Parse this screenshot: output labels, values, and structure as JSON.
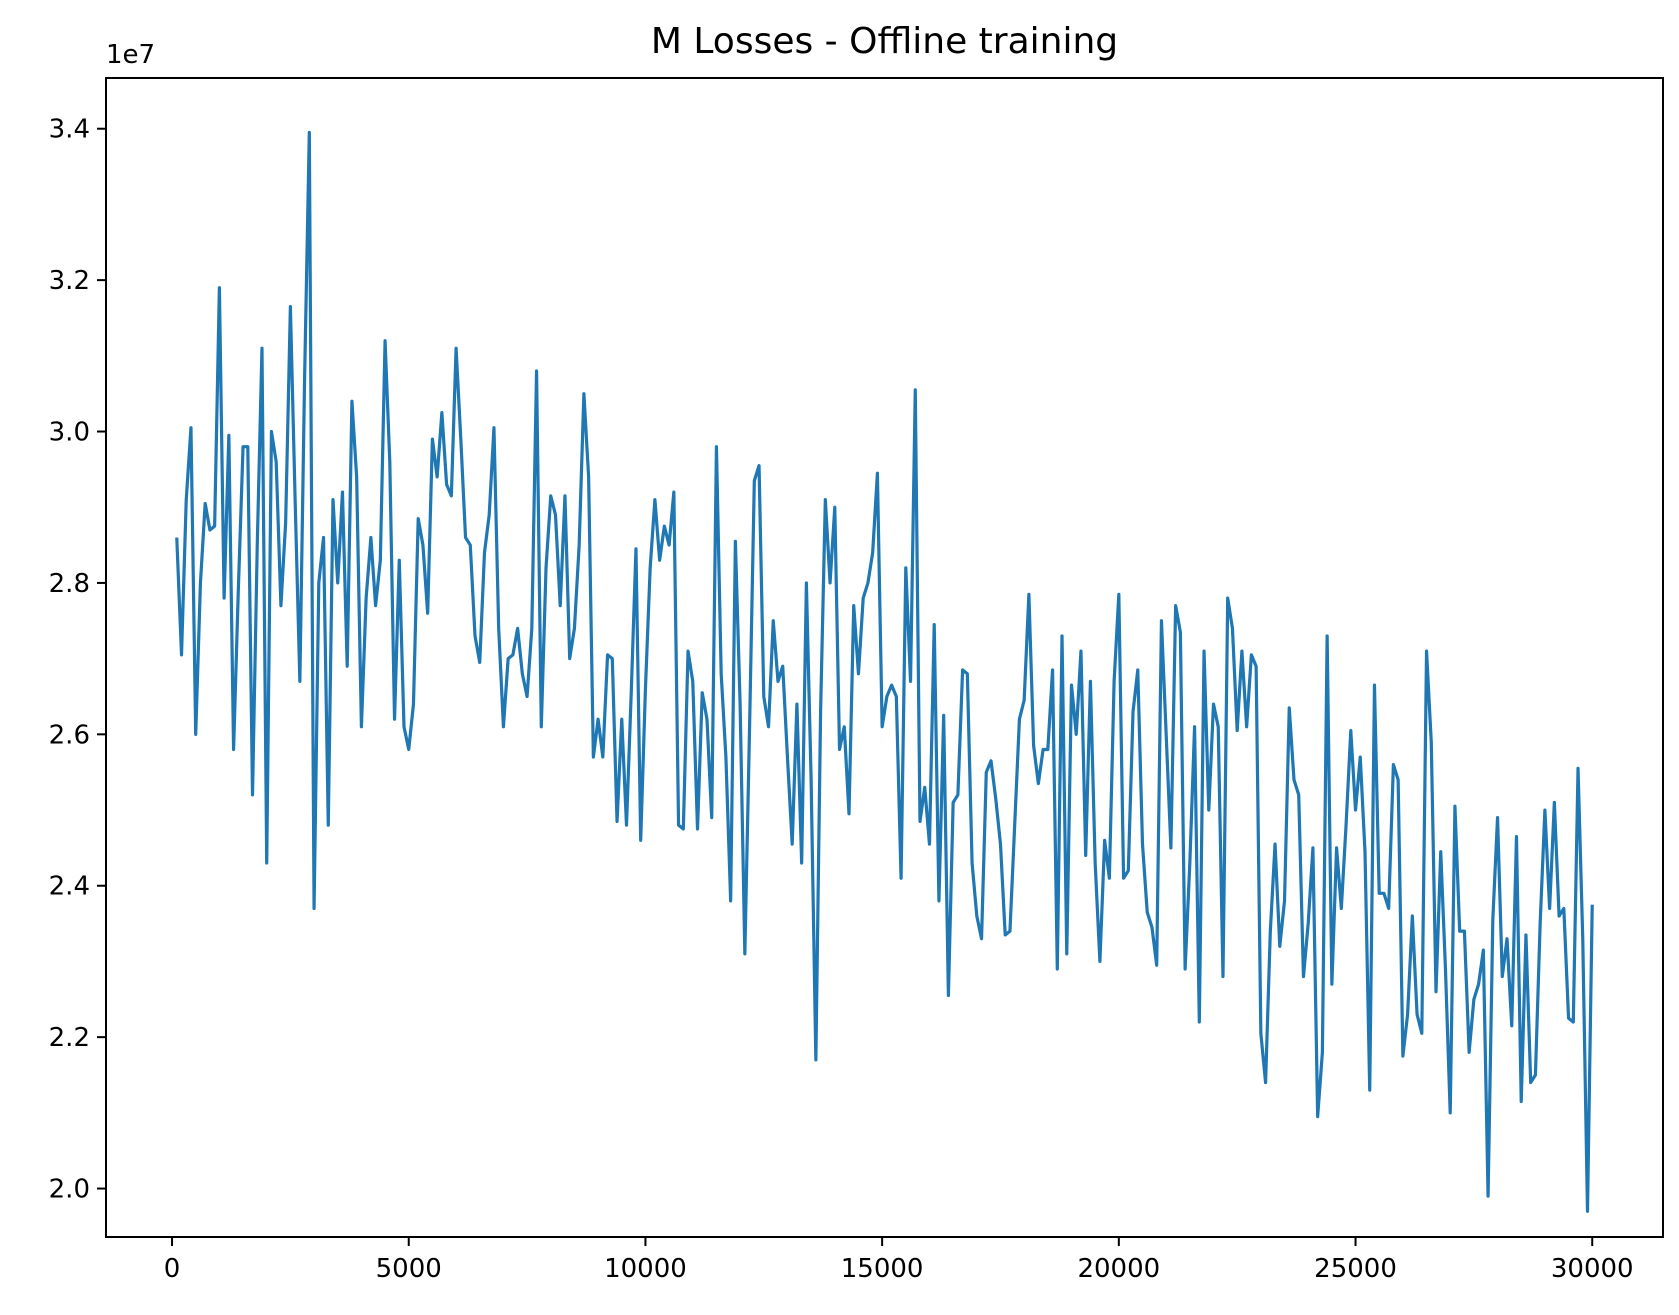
{
  "chart_data": {
    "type": "line",
    "title": "M Losses - Offline training",
    "xlabel": "",
    "ylabel": "",
    "y_offset_label": "1e7",
    "y_scale_factor": 10000000,
    "xlim": [
      -1395,
      31495
    ],
    "ylim": [
      19360000,
      34670000
    ],
    "x_ticks": [
      0,
      5000,
      10000,
      15000,
      20000,
      25000,
      30000
    ],
    "x_tick_labels": [
      "0",
      "5000",
      "10000",
      "15000",
      "20000",
      "25000",
      "30000"
    ],
    "y_ticks": [
      20000000,
      22000000,
      24000000,
      26000000,
      28000000,
      30000000,
      32000000,
      34000000
    ],
    "y_tick_labels": [
      "2.0",
      "2.2",
      "2.4",
      "2.6",
      "2.8",
      "3.0",
      "3.2",
      "3.4"
    ],
    "grid": false,
    "legend": "none",
    "colors": {
      "series": "#1f77b4",
      "axes": "#000000",
      "background": "#ffffff"
    },
    "series": [
      {
        "name": "",
        "x": [
          100,
          200,
          300,
          400,
          500,
          600,
          700,
          800,
          900,
          1000,
          1100,
          1200,
          1300,
          1400,
          1500,
          1600,
          1700,
          1800,
          1900,
          2000,
          2100,
          2200,
          2300,
          2400,
          2500,
          2600,
          2700,
          2800,
          2900,
          3000,
          3100,
          3200,
          3300,
          3400,
          3500,
          3600,
          3700,
          3800,
          3900,
          4000,
          4100,
          4200,
          4300,
          4400,
          4500,
          4600,
          4700,
          4800,
          4900,
          5000,
          5100,
          5200,
          5300,
          5400,
          5500,
          5600,
          5700,
          5800,
          5900,
          6000,
          6100,
          6200,
          6300,
          6400,
          6500,
          6600,
          6700,
          6800,
          6900,
          7000,
          7100,
          7200,
          7300,
          7400,
          7500,
          7600,
          7700,
          7800,
          7900,
          8000,
          8100,
          8200,
          8300,
          8400,
          8500,
          8600,
          8700,
          8800,
          8900,
          9000,
          9100,
          9200,
          9300,
          9400,
          9500,
          9600,
          9700,
          9800,
          9900,
          10000,
          10100,
          10200,
          10300,
          10400,
          10500,
          10600,
          10700,
          10800,
          10900,
          11000,
          11100,
          11200,
          11300,
          11400,
          11500,
          11600,
          11700,
          11800,
          11900,
          12000,
          12100,
          12200,
          12300,
          12400,
          12500,
          12600,
          12700,
          12800,
          12900,
          13000,
          13100,
          13200,
          13300,
          13400,
          13500,
          13600,
          13700,
          13800,
          13900,
          14000,
          14100,
          14200,
          14300,
          14400,
          14500,
          14600,
          14700,
          14800,
          14900,
          15000,
          15100,
          15200,
          15300,
          15400,
          15500,
          15600,
          15700,
          15800,
          15900,
          16000,
          16100,
          16200,
          16300,
          16400,
          16500,
          16600,
          16700,
          16800,
          16900,
          17000,
          17100,
          17200,
          17300,
          17400,
          17500,
          17600,
          17700,
          17800,
          17900,
          18000,
          18100,
          18200,
          18300,
          18400,
          18500,
          18600,
          18700,
          18800,
          18900,
          19000,
          19100,
          19200,
          19300,
          19400,
          19500,
          19600,
          19700,
          19800,
          19900,
          20000,
          20100,
          20200,
          20300,
          20400,
          20500,
          20600,
          20700,
          20800,
          20900,
          21000,
          21100,
          21200,
          21300,
          21400,
          21500,
          21600,
          21700,
          21800,
          21900,
          22000,
          22100,
          22200,
          22300,
          22400,
          22500,
          22600,
          22700,
          22800,
          22900,
          23000,
          23100,
          23200,
          23300,
          23400,
          23500,
          23600,
          23700,
          23800,
          23900,
          24000,
          24100,
          24200,
          24300,
          24400,
          24500,
          24600,
          24700,
          24800,
          24900,
          25000,
          25100,
          25200,
          25300,
          25400,
          25500,
          25600,
          25700,
          25800,
          25900,
          26000,
          26100,
          26200,
          26300,
          26400,
          26500,
          26600,
          26700,
          26800,
          26900,
          27000,
          27100,
          27200,
          27300,
          27400,
          27500,
          27600,
          27700,
          27800,
          27900,
          28000,
          28100,
          28200,
          28300,
          28400,
          28500,
          28600,
          28700,
          28800,
          28900,
          29000,
          29100,
          29200,
          29300,
          29400,
          29500,
          29600,
          29700,
          29800,
          29900,
          30000
        ],
        "y": [
          28600000,
          27050000,
          29100000,
          30050000,
          26000000,
          28000000,
          29050000,
          28700000,
          28750000,
          31900000,
          27800000,
          29950000,
          25800000,
          27900000,
          29800000,
          29800000,
          25200000,
          28500000,
          31100000,
          24300000,
          30000000,
          29600000,
          27700000,
          28800000,
          31650000,
          29100000,
          26700000,
          30700000,
          33950000,
          23700000,
          28000000,
          28600000,
          24800000,
          29100000,
          28000000,
          29200000,
          26900000,
          30400000,
          29400000,
          26100000,
          27800000,
          28600000,
          27700000,
          28300000,
          31200000,
          29600000,
          26200000,
          28300000,
          26100000,
          25800000,
          26400000,
          28850000,
          28500000,
          27600000,
          29900000,
          29400000,
          30250000,
          29300000,
          29150000,
          31100000,
          29900000,
          28600000,
          28500000,
          27300000,
          26950000,
          28400000,
          28900000,
          30050000,
          27400000,
          26100000,
          27000000,
          27050000,
          27400000,
          26800000,
          26500000,
          27400000,
          30800000,
          26100000,
          28200000,
          29150000,
          28900000,
          27700000,
          29150000,
          27000000,
          27400000,
          28500000,
          30500000,
          29400000,
          25700000,
          26200000,
          25700000,
          27050000,
          27000000,
          24850000,
          26200000,
          24800000,
          26550000,
          28450000,
          24600000,
          26600000,
          28200000,
          29100000,
          28300000,
          28750000,
          28500000,
          29200000,
          24800000,
          24750000,
          27100000,
          26700000,
          24750000,
          26550000,
          26200000,
          24900000,
          29800000,
          26800000,
          25700000,
          23800000,
          28550000,
          26400000,
          23100000,
          26100000,
          29350000,
          29550000,
          26500000,
          26100000,
          27500000,
          26700000,
          26900000,
          25700000,
          24550000,
          26400000,
          24300000,
          28000000,
          25400000,
          21700000,
          26300000,
          29100000,
          28000000,
          29000000,
          25800000,
          26100000,
          24950000,
          27700000,
          26800000,
          27800000,
          28000000,
          28400000,
          29450000,
          26100000,
          26500000,
          26650000,
          26500000,
          24100000,
          28200000,
          26700000,
          30550000,
          24850000,
          25300000,
          24550000,
          27450000,
          23800000,
          26250000,
          22550000,
          25100000,
          25200000,
          26850000,
          26800000,
          24300000,
          23600000,
          23300000,
          25500000,
          25650000,
          25150000,
          24550000,
          23350000,
          23400000,
          24800000,
          26200000,
          26450000,
          27850000,
          25850000,
          25350000,
          25800000,
          25800000,
          26850000,
          22900000,
          27300000,
          23100000,
          26650000,
          26000000,
          27100000,
          24400000,
          26700000,
          24300000,
          23000000,
          24600000,
          24100000,
          26700000,
          27850000,
          24100000,
          24200000,
          26300000,
          26850000,
          24550000,
          23650000,
          23450000,
          22950000,
          27500000,
          26000000,
          24500000,
          27700000,
          27350000,
          22900000,
          24300000,
          26100000,
          22200000,
          27100000,
          25000000,
          26400000,
          26100000,
          22800000,
          27800000,
          27400000,
          26050000,
          27100000,
          26100000,
          27050000,
          26900000,
          22050000,
          21400000,
          23400000,
          24550000,
          23200000,
          23800000,
          26350000,
          25400000,
          25200000,
          22800000,
          23500000,
          24500000,
          20950000,
          21800000,
          27300000,
          22700000,
          24500000,
          23700000,
          24800000,
          26050000,
          25000000,
          25700000,
          24450000,
          21300000,
          26650000,
          23900000,
          23900000,
          23700000,
          25600000,
          25400000,
          21750000,
          22300000,
          23600000,
          22300000,
          22050000,
          27100000,
          25900000,
          22600000,
          24450000,
          22900000,
          21000000,
          25050000,
          23400000,
          23400000,
          21800000,
          22500000,
          22700000,
          23150000,
          19900000,
          23550000,
          24900000,
          22800000,
          23300000,
          22150000,
          24650000,
          21150000,
          23350000,
          21400000,
          21500000,
          23500000,
          25000000,
          23700000,
          25100000,
          23600000,
          23700000,
          22250000,
          22200000,
          25550000,
          23300000,
          19700000,
          23750000
        ]
      }
    ]
  }
}
